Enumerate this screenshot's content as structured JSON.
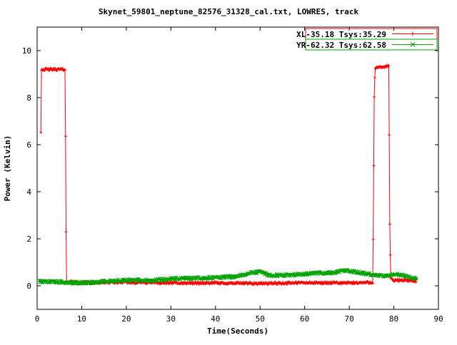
{
  "chart_data": {
    "type": "line",
    "title": "Skynet_59801_neptune_82576_31328_cal.txt, LOWRES, track",
    "xlabel": "Time(Seconds)",
    "ylabel": "Power (Kelvin)",
    "xlim": [
      0,
      90
    ],
    "ylim": [
      -1,
      11
    ],
    "x_ticks": [
      0,
      10,
      20,
      30,
      40,
      50,
      60,
      70,
      80,
      90
    ],
    "y_ticks": [
      0,
      2,
      4,
      6,
      8,
      10
    ],
    "grid": false,
    "legend_position": "top-right",
    "series": [
      {
        "name": "XL-35.18 Tsys:35.29",
        "color": "#ff0000",
        "marker": "plus",
        "style": "linespoints",
        "noise": 0.05,
        "step": 0.12,
        "keypoints": [
          [
            0.85,
            6.55
          ],
          [
            0.95,
            9.2
          ],
          [
            6.3,
            9.2
          ],
          [
            6.45,
            3.05
          ],
          [
            6.6,
            0.18
          ],
          [
            10,
            0.13
          ],
          [
            20,
            0.15
          ],
          [
            30,
            0.12
          ],
          [
            40,
            0.12
          ],
          [
            50,
            0.1
          ],
          [
            60,
            0.13
          ],
          [
            70,
            0.12
          ],
          [
            75.3,
            0.15
          ],
          [
            75.6,
            8.0
          ],
          [
            75.8,
            9.25
          ],
          [
            78.9,
            9.35
          ],
          [
            79.05,
            3.1
          ],
          [
            79.3,
            0.3
          ],
          [
            80,
            0.22
          ],
          [
            82,
            0.25
          ],
          [
            85,
            0.2
          ]
        ]
      },
      {
        "name": "YR-62.32 Tsys:62.58",
        "color": "#00a400",
        "marker": "cross",
        "style": "linespoints",
        "noise": 0.06,
        "step": 0.12,
        "keypoints": [
          [
            0.5,
            0.2
          ],
          [
            3,
            0.18
          ],
          [
            8,
            0.13
          ],
          [
            12,
            0.14
          ],
          [
            18,
            0.22
          ],
          [
            22,
            0.25
          ],
          [
            25,
            0.22
          ],
          [
            30,
            0.3
          ],
          [
            35,
            0.32
          ],
          [
            40,
            0.35
          ],
          [
            45,
            0.4
          ],
          [
            48,
            0.55
          ],
          [
            50,
            0.6
          ],
          [
            52,
            0.45
          ],
          [
            55,
            0.45
          ],
          [
            60,
            0.5
          ],
          [
            63,
            0.55
          ],
          [
            66,
            0.55
          ],
          [
            69,
            0.65
          ],
          [
            71,
            0.6
          ],
          [
            74,
            0.5
          ],
          [
            76,
            0.45
          ],
          [
            78,
            0.4
          ],
          [
            80,
            0.5
          ],
          [
            82,
            0.45
          ],
          [
            84,
            0.35
          ],
          [
            85.2,
            0.3
          ]
        ]
      }
    ]
  }
}
